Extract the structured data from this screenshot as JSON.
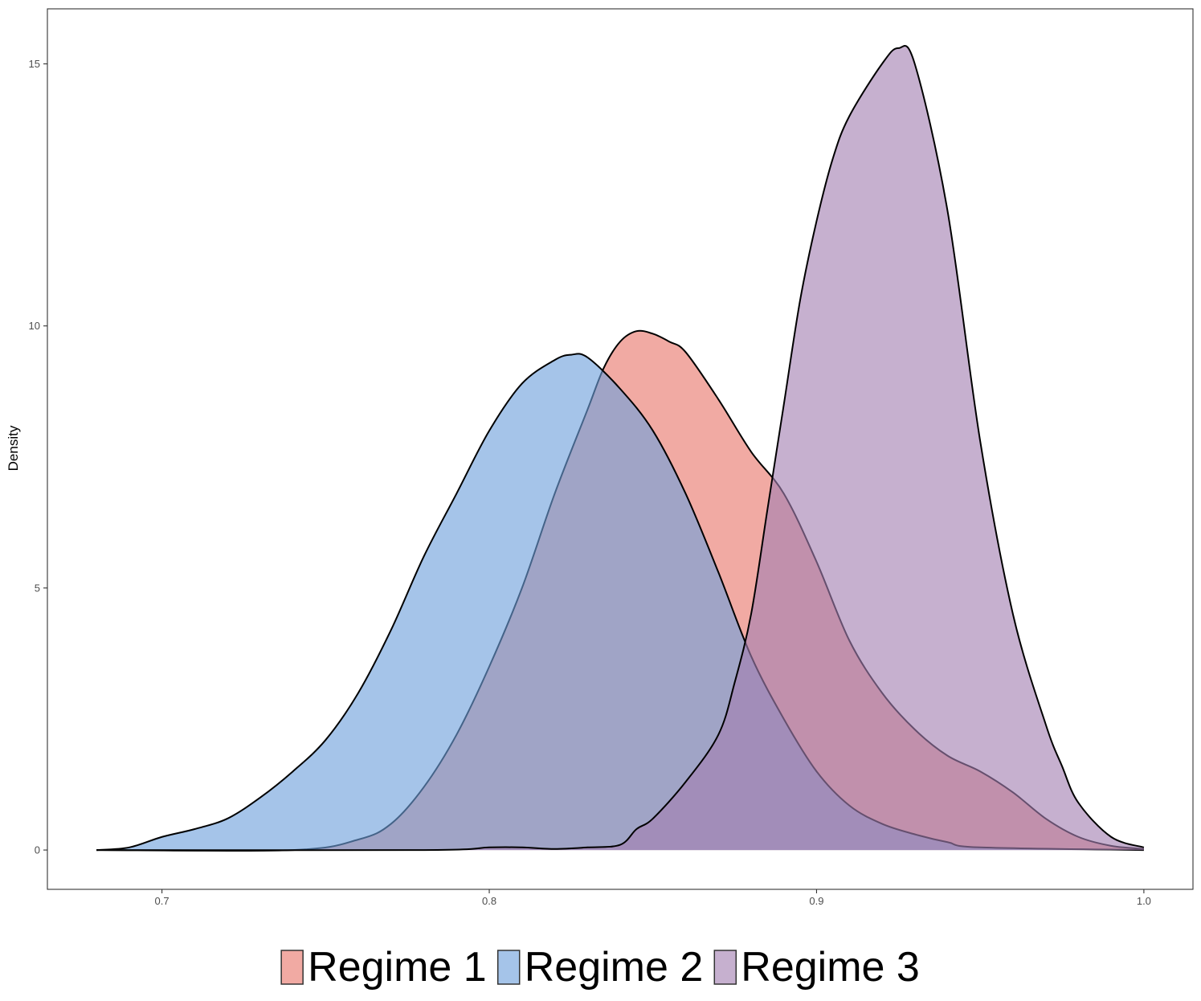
{
  "chart_data": {
    "type": "area",
    "subtype": "density",
    "title": "",
    "xlabel": "",
    "ylabel": "Density",
    "xlim": [
      0.665,
      1.015
    ],
    "ylim": [
      -0.75,
      16.05
    ],
    "xticks": [
      0.7,
      0.8,
      0.9,
      1.0
    ],
    "xtick_labels": [
      "0.7",
      "0.8",
      "0.9",
      "1.0"
    ],
    "yticks": [
      0,
      5,
      10,
      15
    ],
    "ytick_labels": [
      "0",
      "5",
      "10",
      "15"
    ],
    "grid": false,
    "legend_position": "bottom",
    "series": [
      {
        "name": "Regime 1",
        "label": "Regime 1",
        "color": "#e8766a",
        "x": [
          0.68,
          0.74,
          0.76,
          0.77,
          0.78,
          0.79,
          0.8,
          0.81,
          0.82,
          0.83,
          0.835,
          0.84,
          0.845,
          0.85,
          0.855,
          0.86,
          0.87,
          0.88,
          0.89,
          0.9,
          0.91,
          0.92,
          0.93,
          0.94,
          0.95,
          0.96,
          0.97,
          0.98,
          0.99,
          1.0
        ],
        "y": [
          0.0,
          0.0,
          0.2,
          0.5,
          1.2,
          2.2,
          3.5,
          5.0,
          6.8,
          8.4,
          9.2,
          9.7,
          9.9,
          9.85,
          9.7,
          9.5,
          8.6,
          7.6,
          6.8,
          5.5,
          4.0,
          3.0,
          2.3,
          1.8,
          1.5,
          1.1,
          0.6,
          0.25,
          0.08,
          0.02
        ]
      },
      {
        "name": "Regime 2",
        "label": "Regime 2",
        "color": "#6da0dc",
        "x": [
          0.68,
          0.69,
          0.7,
          0.71,
          0.72,
          0.73,
          0.74,
          0.75,
          0.76,
          0.77,
          0.78,
          0.79,
          0.8,
          0.81,
          0.82,
          0.825,
          0.83,
          0.84,
          0.85,
          0.86,
          0.87,
          0.88,
          0.89,
          0.9,
          0.91,
          0.92,
          0.93,
          0.94,
          0.95,
          1.0
        ],
        "y": [
          0.0,
          0.05,
          0.25,
          0.4,
          0.6,
          1.0,
          1.5,
          2.1,
          3.0,
          4.2,
          5.6,
          6.8,
          8.0,
          8.9,
          9.35,
          9.45,
          9.4,
          8.8,
          8.0,
          6.8,
          5.3,
          3.7,
          2.5,
          1.5,
          0.85,
          0.5,
          0.3,
          0.15,
          0.05,
          0.0
        ]
      },
      {
        "name": "Regime 3",
        "label": "Regime 3",
        "color": "#a37fb1",
        "x": [
          0.68,
          0.78,
          0.8,
          0.81,
          0.82,
          0.83,
          0.84,
          0.845,
          0.85,
          0.86,
          0.87,
          0.875,
          0.88,
          0.885,
          0.89,
          0.895,
          0.9,
          0.905,
          0.91,
          0.92,
          0.925,
          0.93,
          0.94,
          0.95,
          0.96,
          0.97,
          0.975,
          0.98,
          0.99,
          1.0
        ],
        "y": [
          0.0,
          0.0,
          0.05,
          0.05,
          0.02,
          0.05,
          0.1,
          0.4,
          0.6,
          1.3,
          2.2,
          3.2,
          4.5,
          6.5,
          8.5,
          10.5,
          12.0,
          13.2,
          14.0,
          15.0,
          15.3,
          15.0,
          12.2,
          7.8,
          4.5,
          2.4,
          1.6,
          0.9,
          0.25,
          0.05
        ]
      }
    ]
  }
}
